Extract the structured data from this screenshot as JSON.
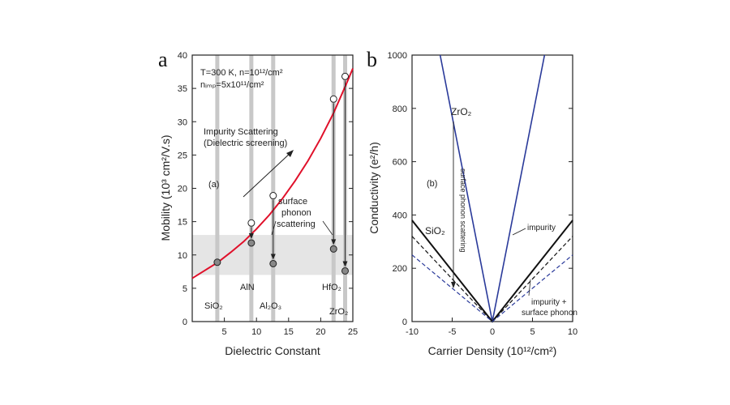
{
  "panels": [
    {
      "letter": "a",
      "inner_label": "(a)",
      "xlabel": "Dielectric Constant",
      "ylabel": "Mobility (10³ cm²/V.s)",
      "xlim": [
        0,
        25
      ],
      "ylim": [
        0,
        40
      ],
      "x_ticks": [
        5,
        10,
        15,
        20,
        25
      ],
      "y_ticks": [
        0,
        5,
        10,
        15,
        20,
        25,
        30,
        35,
        40
      ],
      "info_line1": "T=300 K, n=10¹²/cm²",
      "info_line2": "nᵢₘₚ=5x10¹¹/cm²",
      "annotation_impurity_1": "Impurity Scattering",
      "annotation_impurity_2": "(Dielectric screening)",
      "annotation_phonon_1": "surface",
      "annotation_phonon_2": "phonon",
      "annotation_phonon_3": "scattering",
      "material_labels": {
        "SiO2": "SiO₂",
        "AlN": "AlN",
        "Al2O3": "Al₂O₃",
        "HfO2": "HfO₂",
        "ZrO2": "ZrO₂"
      }
    },
    {
      "letter": "b",
      "inner_label": "(b)",
      "xlabel": "Carrier Density (10¹²/cm²)",
      "ylabel": "Conductivity (e²/h)",
      "xlim": [
        -10,
        10
      ],
      "ylim": [
        0,
        1000
      ],
      "x_ticks": [
        -10,
        -5,
        0,
        5,
        10
      ],
      "y_ticks": [
        0,
        200,
        400,
        600,
        800,
        1000
      ],
      "label_ZrO2": "ZrO₂",
      "label_SiO2": "SiO₂",
      "label_surface_phonon": "surface phonon scattering",
      "label_impurity": "impurity",
      "label_impurity_phonon_1": "impurity +",
      "label_impurity_phonon_2": "surface phonon"
    }
  ],
  "colors": {
    "mobility_curve": "#e0102a",
    "zro2_line": "#2a3a9a",
    "sio2_line": "#111111",
    "impurity_phonon_line": "#2a3a9a",
    "gray_bar": "#c8c8c8",
    "band": "#dcdcdc"
  },
  "chart_data": [
    {
      "type": "line",
      "panel": "a",
      "xlabel": "Dielectric Constant",
      "ylabel": "Mobility (10³ cm²/V.s)",
      "xlim": [
        0,
        25
      ],
      "ylim": [
        0,
        40
      ],
      "shaded_band_y": [
        7,
        13
      ],
      "series": [
        {
          "kind": "line",
          "x": [
            0,
            2,
            4,
            6,
            8,
            10,
            12,
            14,
            16,
            18,
            20,
            22,
            24,
            25
          ],
          "y": [
            6.5,
            7.7,
            8.9,
            10.4,
            12.0,
            13.9,
            16.0,
            18.4,
            21.1,
            24.1,
            27.5,
            31.3,
            35.7,
            38.0
          ]
        },
        {
          "kind": "points",
          "marker": "open",
          "x": [
            9.2,
            12.6,
            22.0,
            23.8
          ],
          "y": [
            14.8,
            18.9,
            33.4,
            36.8
          ]
        },
        {
          "kind": "points",
          "marker": "filled",
          "x": [
            3.9,
            9.2,
            12.6,
            22.0,
            23.8
          ],
          "y": [
            8.9,
            11.8,
            8.7,
            10.9,
            7.6
          ]
        }
      ],
      "materials": [
        {
          "name": "SiO2",
          "k": 3.9
        },
        {
          "name": "AlN",
          "k": 9.2
        },
        {
          "name": "Al2O3",
          "k": 12.6
        },
        {
          "name": "HfO2",
          "k": 22.0
        },
        {
          "name": "ZrO2",
          "k": 23.8
        }
      ]
    },
    {
      "type": "line",
      "panel": "b",
      "xlabel": "Carrier Density (10¹²/cm²)",
      "ylabel": "Conductivity (e²/h)",
      "xlim": [
        -10,
        10
      ],
      "ylim": [
        0,
        1000
      ],
      "series": [
        {
          "label": "ZrO2",
          "style": "solid",
          "x": [
            -6.5,
            0,
            6.5
          ],
          "y": [
            1000,
            0,
            1000
          ]
        },
        {
          "label": "SiO2",
          "style": "solid",
          "x": [
            -10,
            0,
            10
          ],
          "y": [
            380,
            0,
            380
          ]
        },
        {
          "label": "impurity",
          "style": "dashed",
          "x": [
            -10,
            0,
            10
          ],
          "y": [
            320,
            0,
            320
          ]
        },
        {
          "label": "impurity + surface phonon",
          "style": "dashed",
          "x": [
            -10,
            0,
            10
          ],
          "y": [
            250,
            0,
            250
          ]
        }
      ]
    }
  ]
}
